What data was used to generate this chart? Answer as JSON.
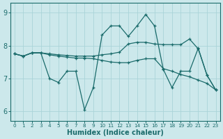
{
  "xlabel": "Humidex (Indice chaleur)",
  "bg_color": "#cce8eb",
  "grid_color": "#aad4d8",
  "line_color": "#1a6b6b",
  "ylim": [
    5.7,
    9.3
  ],
  "xlim": [
    -0.5,
    23.5
  ],
  "yticks": [
    6,
    7,
    8,
    9
  ],
  "xticks": [
    0,
    1,
    2,
    3,
    4,
    5,
    6,
    7,
    8,
    9,
    10,
    11,
    12,
    13,
    14,
    15,
    16,
    17,
    18,
    19,
    20,
    21,
    22,
    23
  ],
  "line1_y": [
    7.75,
    7.68,
    7.78,
    7.78,
    7.75,
    7.72,
    7.7,
    7.68,
    7.68,
    7.68,
    7.72,
    7.75,
    7.8,
    8.05,
    8.1,
    8.1,
    8.05,
    8.03,
    8.03,
    8.03,
    8.2,
    7.9,
    7.1,
    6.65
  ],
  "line2_y": [
    7.75,
    7.68,
    7.78,
    7.78,
    7.72,
    7.68,
    7.65,
    7.62,
    7.62,
    7.6,
    7.55,
    7.5,
    7.48,
    7.48,
    7.55,
    7.6,
    7.6,
    7.3,
    7.22,
    7.12,
    7.05,
    6.95,
    6.85,
    6.65
  ],
  "line3_y": [
    7.75,
    7.68,
    7.78,
    7.78,
    7.0,
    6.88,
    7.22,
    7.22,
    6.05,
    6.72,
    8.32,
    8.6,
    8.6,
    8.28,
    8.6,
    8.95,
    8.6,
    7.28,
    6.72,
    7.22,
    7.22,
    7.92,
    7.1,
    6.65
  ]
}
